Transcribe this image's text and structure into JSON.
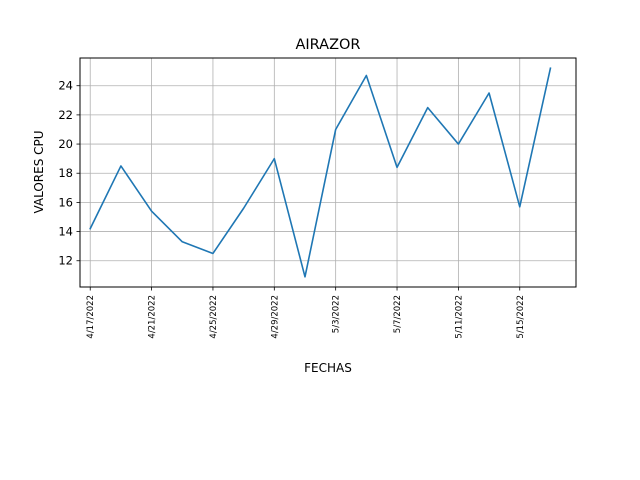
{
  "chart_data": {
    "type": "line",
    "title": "AIRAZOR",
    "xlabel": "FECHAS",
    "ylabel": "VALORES CPU",
    "grid": true,
    "color": "#1f77b4",
    "x": [
      "2022-04-17",
      "2022-04-19",
      "2022-04-21",
      "2022-04-23",
      "2022-04-25",
      "2022-04-27",
      "2022-04-29",
      "2022-05-01",
      "2022-05-03",
      "2022-05-05",
      "2022-05-07",
      "2022-05-09",
      "2022-05-11",
      "2022-05-13",
      "2022-05-15",
      "2022-05-17"
    ],
    "series": [
      {
        "values": [
          14.2,
          18.5,
          15.4,
          13.3,
          12.5,
          15.6,
          19.0,
          10.9,
          21.0,
          24.7,
          18.4,
          22.5,
          20.0,
          23.5,
          15.7,
          25.2
        ]
      }
    ],
    "xticks": [
      {
        "date": "2022-04-17",
        "label": "4/17/2022"
      },
      {
        "date": "2022-04-21",
        "label": "4/21/2022"
      },
      {
        "date": "2022-04-25",
        "label": "4/25/2022"
      },
      {
        "date": "2022-04-29",
        "label": "4/29/2022"
      },
      {
        "date": "2022-05-03",
        "label": "5/3/2022"
      },
      {
        "date": "2022-05-07",
        "label": "5/7/2022"
      },
      {
        "date": "2022-05-11",
        "label": "5/11/2022"
      },
      {
        "date": "2022-05-15",
        "label": "5/15/2022"
      }
    ],
    "yticks": [
      12,
      14,
      16,
      18,
      20,
      22,
      24
    ],
    "xlim": [
      "2016-04-15 08:00",
      "2022-05-18 16:00"
    ],
    "ylim": [
      10.2,
      25.9
    ]
  }
}
